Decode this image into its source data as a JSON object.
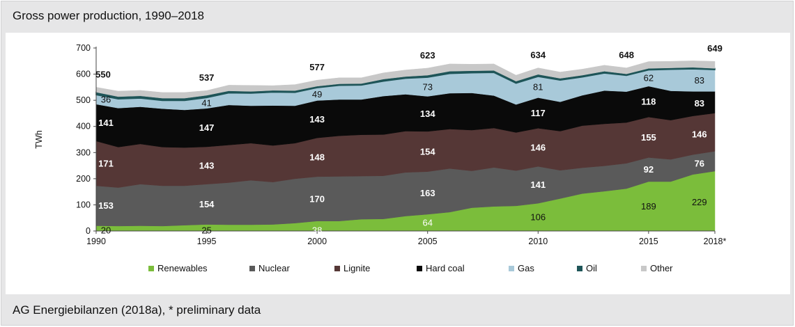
{
  "title": "Gross power production, 1990–2018",
  "footer": "AG Energiebilanzen (2018a), * preliminary data",
  "chart_data": {
    "type": "area",
    "stacked": true,
    "title": "Gross power production, 1990–2018",
    "ylabel": "TWh",
    "xlabel": "",
    "ylim": [
      0,
      700
    ],
    "yticks": [
      0,
      100,
      200,
      300,
      400,
      500,
      600,
      700
    ],
    "grid": false,
    "legend_position": "bottom",
    "x": [
      1990,
      1991,
      1992,
      1993,
      1994,
      1995,
      1996,
      1997,
      1998,
      1999,
      2000,
      2001,
      2002,
      2003,
      2004,
      2005,
      2006,
      2007,
      2008,
      2009,
      2010,
      2011,
      2012,
      2013,
      2014,
      2015,
      2016,
      2017,
      2018
    ],
    "x_tick_labels": [
      {
        "x": 1990,
        "label": "1990"
      },
      {
        "x": 1995,
        "label": "1995"
      },
      {
        "x": 2000,
        "label": "2000"
      },
      {
        "x": 2005,
        "label": "2005"
      },
      {
        "x": 2010,
        "label": "2010"
      },
      {
        "x": 2015,
        "label": "2015"
      },
      {
        "x": 2018,
        "label": "2018*"
      }
    ],
    "series": [
      {
        "name": "Renewables",
        "color": "#7bbd3b",
        "values": [
          20,
          19,
          20,
          19,
          22,
          25,
          24,
          24,
          25,
          30,
          38,
          38,
          45,
          46,
          57,
          64,
          72,
          89,
          94,
          96,
          106,
          124,
          143,
          152,
          162,
          189,
          189,
          216,
          229
        ]
      },
      {
        "name": "Nuclear",
        "color": "#5a5a5a",
        "values": [
          153,
          147,
          159,
          154,
          151,
          154,
          161,
          170,
          162,
          170,
          170,
          171,
          165,
          165,
          167,
          163,
          167,
          141,
          149,
          135,
          141,
          108,
          99,
          97,
          97,
          92,
          85,
          76,
          76
        ]
      },
      {
        "name": "Lignite",
        "color": "#553736",
        "values": [
          171,
          155,
          154,
          148,
          146,
          143,
          144,
          142,
          140,
          136,
          148,
          155,
          158,
          158,
          158,
          154,
          151,
          156,
          151,
          146,
          146,
          150,
          161,
          161,
          156,
          155,
          150,
          148,
          146
        ]
      },
      {
        "name": "Hard coal",
        "color": "#0a0a0a",
        "values": [
          141,
          149,
          142,
          147,
          144,
          147,
          153,
          143,
          153,
          143,
          143,
          139,
          135,
          147,
          141,
          134,
          137,
          142,
          124,
          107,
          117,
          112,
          116,
          127,
          118,
          118,
          112,
          94,
          83
        ]
      },
      {
        "name": "Gas",
        "color": "#a8c9d9",
        "values": [
          36,
          35,
          33,
          31,
          36,
          41,
          46,
          48,
          51,
          51,
          49,
          54,
          55,
          57,
          61,
          73,
          75,
          77,
          88,
          81,
          81,
          83,
          70,
          67,
          62,
          62,
          82,
          86,
          83
        ]
      },
      {
        "name": "Oil",
        "color": "#1e5558",
        "values": [
          10,
          9,
          9,
          9,
          9,
          9,
          8,
          7,
          7,
          7,
          6,
          6,
          6,
          8,
          7,
          8,
          9,
          8,
          8,
          8,
          8,
          7,
          7,
          7,
          6,
          6,
          6,
          6,
          5
        ]
      },
      {
        "name": "Other",
        "color": "#c8c8c8",
        "values": [
          19,
          21,
          21,
          22,
          22,
          18,
          22,
          23,
          18,
          23,
          23,
          23,
          22,
          24,
          25,
          27,
          28,
          25,
          25,
          23,
          25,
          24,
          23,
          23,
          23,
          26,
          25,
          25,
          27
        ]
      }
    ],
    "totals": [
      {
        "x": 1990,
        "label": "550"
      },
      {
        "x": 1995,
        "label": "537"
      },
      {
        "x": 2000,
        "label": "577"
      },
      {
        "x": 2005,
        "label": "623"
      },
      {
        "x": 2010,
        "label": "634"
      },
      {
        "x": 2014,
        "label": "648"
      },
      {
        "x": 2018,
        "label": "649"
      }
    ],
    "data_labels": [
      {
        "series": "Renewables",
        "x": 1990,
        "label": "20",
        "color": "#111111",
        "bold": false
      },
      {
        "series": "Nuclear",
        "x": 1990,
        "label": "153",
        "color": "#ffffff",
        "bold": true
      },
      {
        "series": "Lignite",
        "x": 1990,
        "label": "171",
        "color": "#ffffff",
        "bold": true
      },
      {
        "series": "Hard coal",
        "x": 1990,
        "label": "141",
        "color": "#ffffff",
        "bold": true
      },
      {
        "series": "Gas",
        "x": 1990,
        "label": "36",
        "color": "#111111",
        "bold": false
      },
      {
        "series": "Renewables",
        "x": 1995,
        "label": "25",
        "color": "#111111",
        "bold": false
      },
      {
        "series": "Nuclear",
        "x": 1995,
        "label": "154",
        "color": "#ffffff",
        "bold": true
      },
      {
        "series": "Lignite",
        "x": 1995,
        "label": "143",
        "color": "#ffffff",
        "bold": true
      },
      {
        "series": "Hard coal",
        "x": 1995,
        "label": "147",
        "color": "#ffffff",
        "bold": true
      },
      {
        "series": "Gas",
        "x": 1995,
        "label": "41",
        "color": "#111111",
        "bold": false
      },
      {
        "series": "Renewables",
        "x": 2000,
        "label": "38",
        "color": "#ffffff",
        "bold": false
      },
      {
        "series": "Nuclear",
        "x": 2000,
        "label": "170",
        "color": "#ffffff",
        "bold": true
      },
      {
        "series": "Lignite",
        "x": 2000,
        "label": "148",
        "color": "#ffffff",
        "bold": true
      },
      {
        "series": "Hard coal",
        "x": 2000,
        "label": "143",
        "color": "#ffffff",
        "bold": true
      },
      {
        "series": "Gas",
        "x": 2000,
        "label": "49",
        "color": "#111111",
        "bold": false
      },
      {
        "series": "Renewables",
        "x": 2005,
        "label": "64",
        "color": "#ffffff",
        "bold": false
      },
      {
        "series": "Nuclear",
        "x": 2005,
        "label": "163",
        "color": "#ffffff",
        "bold": true
      },
      {
        "series": "Lignite",
        "x": 2005,
        "label": "154",
        "color": "#ffffff",
        "bold": true
      },
      {
        "series": "Hard coal",
        "x": 2005,
        "label": "134",
        "color": "#ffffff",
        "bold": true
      },
      {
        "series": "Gas",
        "x": 2005,
        "label": "73",
        "color": "#111111",
        "bold": false
      },
      {
        "series": "Renewables",
        "x": 2010,
        "label": "106",
        "color": "#111111",
        "bold": false
      },
      {
        "series": "Nuclear",
        "x": 2010,
        "label": "141",
        "color": "#ffffff",
        "bold": true
      },
      {
        "series": "Lignite",
        "x": 2010,
        "label": "146",
        "color": "#ffffff",
        "bold": true
      },
      {
        "series": "Hard coal",
        "x": 2010,
        "label": "117",
        "color": "#ffffff",
        "bold": true
      },
      {
        "series": "Gas",
        "x": 2010,
        "label": "81",
        "color": "#111111",
        "bold": false
      },
      {
        "series": "Renewables",
        "x": 2015,
        "label": "189",
        "color": "#111111",
        "bold": false
      },
      {
        "series": "Nuclear",
        "x": 2015,
        "label": "92",
        "color": "#ffffff",
        "bold": true
      },
      {
        "series": "Lignite",
        "x": 2015,
        "label": "155",
        "color": "#ffffff",
        "bold": true
      },
      {
        "series": "Hard coal",
        "x": 2015,
        "label": "118",
        "color": "#ffffff",
        "bold": true
      },
      {
        "series": "Gas",
        "x": 2015,
        "label": "62",
        "color": "#111111",
        "bold": false
      },
      {
        "series": "Renewables",
        "x": 2017.3,
        "label": "229",
        "color": "#111111",
        "bold": false
      },
      {
        "series": "Nuclear",
        "x": 2017.3,
        "label": "76",
        "color": "#ffffff",
        "bold": true
      },
      {
        "series": "Lignite",
        "x": 2017.3,
        "label": "146",
        "color": "#ffffff",
        "bold": true
      },
      {
        "series": "Hard coal",
        "x": 2017.3,
        "label": "83",
        "color": "#ffffff",
        "bold": true
      },
      {
        "series": "Gas",
        "x": 2017.3,
        "label": "83",
        "color": "#111111",
        "bold": false
      }
    ]
  }
}
